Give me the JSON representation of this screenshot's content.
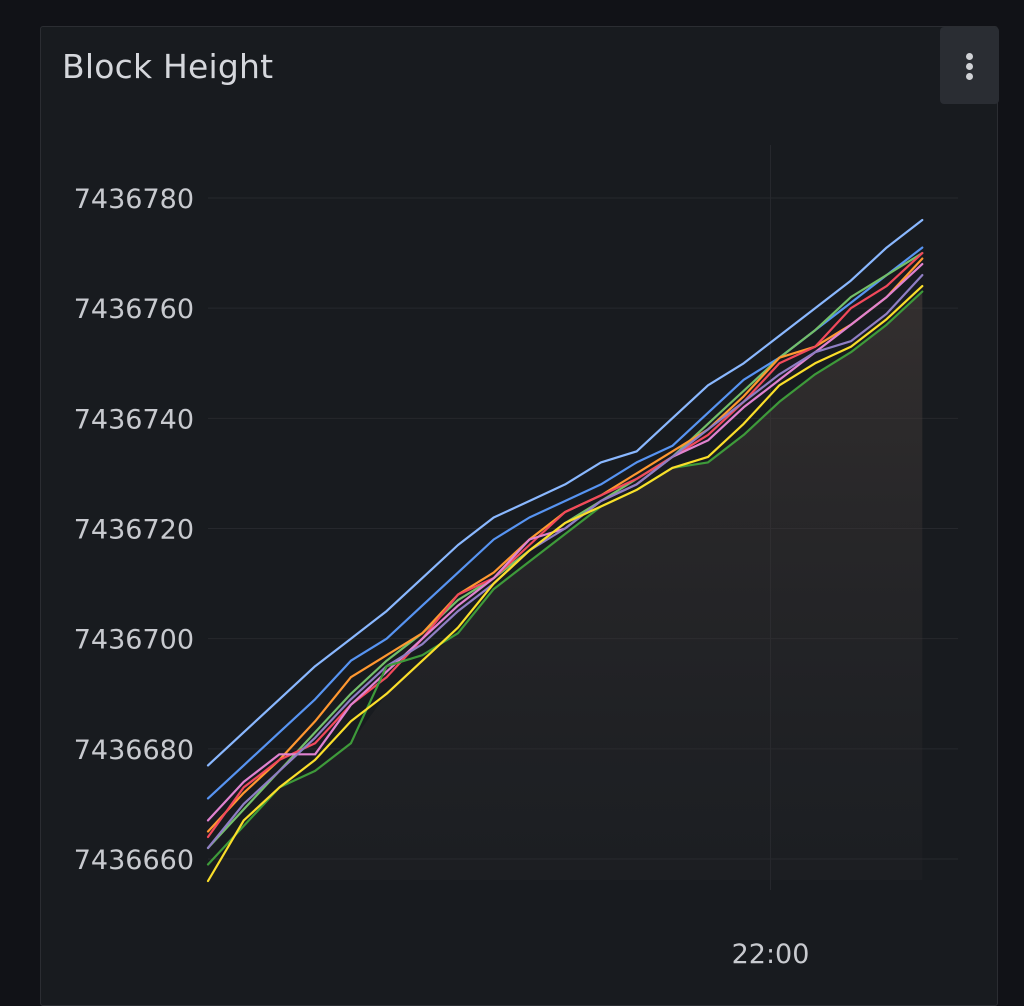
{
  "panel": {
    "title": "Block Height"
  },
  "menu": {
    "icon": "kebab-menu-icon"
  },
  "chart_data": {
    "type": "line",
    "title": "Block Height",
    "xlabel": "",
    "ylabel": "",
    "ylim": [
      7436657,
      7436790
    ],
    "grid": true,
    "legend": "none",
    "x_ticks": [
      {
        "label": "22:00",
        "position": 0.75
      }
    ],
    "y_ticks": [
      7436660,
      7436680,
      7436700,
      7436720,
      7436740,
      7436760,
      7436780
    ],
    "x": [
      0,
      1,
      2,
      3,
      4,
      5,
      6,
      7,
      8,
      9,
      10,
      11,
      12,
      13,
      14,
      15,
      16,
      17,
      18,
      19,
      20,
      21
    ],
    "series": [
      {
        "color": "#8ab8ff",
        "values": [
          7436677,
          7436683,
          7436689,
          7436695,
          7436700,
          7436705,
          7436711,
          7436717,
          7436722,
          7436725,
          7436728,
          7436732,
          7436734,
          7436740,
          7436746,
          7436750,
          7436755,
          7436760,
          7436765,
          7436771,
          7436776,
          null
        ]
      },
      {
        "color": "#5794f2",
        "values": [
          7436671,
          7436677,
          7436683,
          7436689,
          7436696,
          7436700,
          7436706,
          7436712,
          7436718,
          7436722,
          7436725,
          7436728,
          7436732,
          7436735,
          7436741,
          7436747,
          7436751,
          7436756,
          7436761,
          7436766,
          7436771,
          null
        ]
      },
      {
        "color": "#73bf69",
        "values": [
          7436662,
          7436669,
          7436676,
          7436683,
          7436690,
          7436696,
          7436701,
          7436707,
          7436711,
          7436716,
          7436721,
          7436725,
          7436729,
          7436733,
          7436739,
          7436745,
          7436751,
          7436756,
          7436762,
          7436766,
          7436770,
          null
        ]
      },
      {
        "color": "#ff9830",
        "values": [
          7436665,
          7436672,
          7436678,
          7436685,
          7436693,
          7436697,
          7436701,
          7436708,
          7436712,
          7436718,
          7436723,
          7436726,
          7436730,
          7436734,
          7436738,
          7436744,
          7436751,
          7436753,
          7436757,
          7436762,
          7436769,
          null
        ]
      },
      {
        "color": "#f2495c",
        "values": [
          7436664,
          7436673,
          7436678,
          7436681,
          7436688,
          7436693,
          7436700,
          7436708,
          7436711,
          7436717,
          7436723,
          7436726,
          7436729,
          7436733,
          7436737,
          7436743,
          7436750,
          7436753,
          7436760,
          7436764,
          7436770,
          null
        ]
      },
      {
        "color": "#e082d0",
        "values": [
          7436667,
          7436674,
          7436679,
          7436679,
          7436688,
          7436694,
          7436700,
          7436706,
          7436711,
          7436718,
          7436720,
          7436725,
          7436728,
          7436733,
          7436736,
          7436742,
          7436747,
          7436752,
          7436757,
          7436762,
          7436768,
          null
        ]
      },
      {
        "color": "#8f7ec4",
        "values": [
          7436662,
          7436670,
          7436676,
          7436682,
          7436689,
          7436695,
          7436699,
          7436705,
          7436710,
          7436716,
          7436720,
          7436725,
          7436728,
          7436733,
          7436738,
          7436743,
          7436748,
          7436752,
          7436754,
          7436759,
          7436766,
          null
        ]
      },
      {
        "color": "#3e9a3a",
        "values": [
          7436659,
          7436666,
          7436673,
          7436676,
          7436681,
          7436695,
          7436697,
          7436701,
          7436709,
          7436714,
          7436719,
          7436724,
          7436727,
          7436731,
          7436732,
          7436737,
          7436743,
          7436748,
          7436752,
          7436757,
          7436763,
          null
        ]
      },
      {
        "color": "#fade2a",
        "values": [
          7436656,
          7436667,
          7436673,
          7436678,
          7436685,
          7436690,
          7436696,
          7436702,
          7436710,
          7436716,
          7436721,
          7436724,
          7436727,
          7436731,
          7436733,
          7436739,
          7436746,
          7436750,
          7436753,
          7436758,
          7436764,
          null
        ]
      }
    ]
  }
}
